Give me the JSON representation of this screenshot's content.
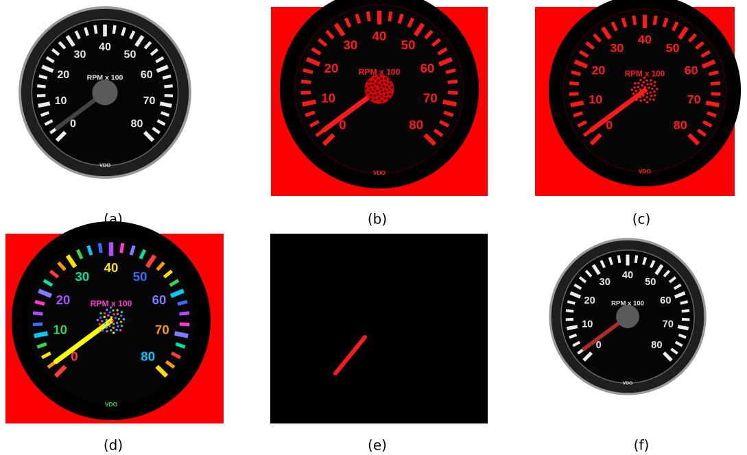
{
  "panels": [
    {
      "caption": "(a)"
    },
    {
      "caption": "(b)"
    },
    {
      "caption": "(c)"
    },
    {
      "caption": "(d)"
    },
    {
      "caption": "(e)"
    },
    {
      "caption": "(f)"
    }
  ],
  "gauge": {
    "scale_labels": [
      "0",
      "10",
      "20",
      "30",
      "40",
      "50",
      "60",
      "70",
      "80"
    ],
    "unit_label": "RPM x 100",
    "brand": "VDO"
  }
}
